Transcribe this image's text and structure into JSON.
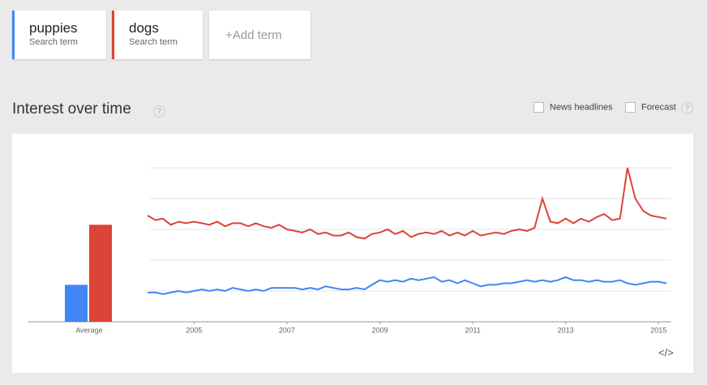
{
  "header": {
    "terms": [
      {
        "subtitle": "Search term"
      },
      {
        "subtitle": "Search term"
      }
    ],
    "add_term": "+Add term"
  },
  "section": {
    "title": "Interest over time",
    "help": "?",
    "options": [
      "News headlines",
      "Forecast"
    ],
    "forecast_help": "?",
    "embed": "</>"
  },
  "chart_data": {
    "type": "line",
    "x": [
      2004,
      2004.17,
      2004.33,
      2004.5,
      2004.67,
      2004.83,
      2005,
      2005.17,
      2005.33,
      2005.5,
      2005.67,
      2005.83,
      2006,
      2006.17,
      2006.33,
      2006.5,
      2006.67,
      2006.83,
      2007,
      2007.17,
      2007.33,
      2007.5,
      2007.67,
      2007.83,
      2008,
      2008.17,
      2008.33,
      2008.5,
      2008.67,
      2008.83,
      2009,
      2009.17,
      2009.33,
      2009.5,
      2009.67,
      2009.83,
      2010,
      2010.17,
      2010.33,
      2010.5,
      2010.67,
      2010.83,
      2011,
      2011.17,
      2011.33,
      2011.5,
      2011.67,
      2011.83,
      2012,
      2012.17,
      2012.33,
      2012.5,
      2012.67,
      2012.83,
      2013,
      2013.17,
      2013.33,
      2013.5,
      2013.67,
      2013.83,
      2014,
      2014.17,
      2014.33,
      2014.5,
      2014.67,
      2014.83,
      2015,
      2015.17
    ],
    "series": [
      {
        "name": "puppies",
        "color": "#4285f4",
        "average": 24,
        "values": [
          19,
          19,
          18,
          19,
          20,
          19,
          20,
          21,
          20,
          21,
          20,
          22,
          21,
          20,
          21,
          20,
          22,
          22,
          22,
          22,
          21,
          22,
          21,
          23,
          22,
          21,
          21,
          22,
          21,
          24,
          27,
          26,
          27,
          26,
          28,
          27,
          28,
          29,
          26,
          27,
          25,
          27,
          25,
          23,
          24,
          24,
          25,
          25,
          26,
          27,
          26,
          27,
          26,
          27,
          29,
          27,
          27,
          26,
          27,
          26,
          26,
          27,
          25,
          24,
          25,
          26,
          26,
          25
        ]
      },
      {
        "name": "dogs",
        "color": "#db4437",
        "average": 63,
        "values": [
          69,
          66,
          67,
          63,
          65,
          64,
          65,
          64,
          63,
          65,
          62,
          64,
          64,
          62,
          64,
          62,
          61,
          63,
          60,
          59,
          58,
          60,
          57,
          58,
          56,
          56,
          58,
          55,
          54,
          57,
          58,
          60,
          57,
          59,
          55,
          57,
          58,
          57,
          59,
          56,
          58,
          56,
          59,
          56,
          57,
          58,
          57,
          59,
          60,
          59,
          61,
          80,
          65,
          64,
          67,
          64,
          67,
          65,
          68,
          70,
          66,
          67,
          100,
          80,
          72,
          69,
          68,
          67
        ]
      }
    ],
    "average_label": "Average",
    "xlim": [
      2004,
      2015.25
    ],
    "xticks": [
      2005,
      2007,
      2009,
      2011,
      2013,
      2015
    ],
    "ylim": [
      0,
      100
    ],
    "yticks": [
      20,
      40,
      60,
      80,
      100
    ],
    "grid": true
  }
}
